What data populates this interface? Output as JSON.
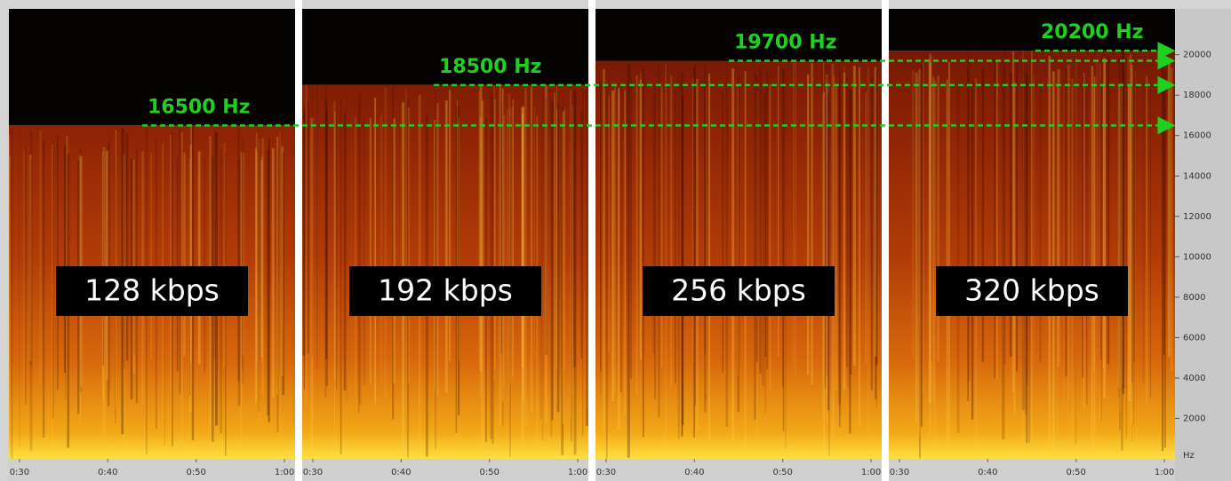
{
  "chart_data": {
    "type": "spectrogram",
    "categories": [
      "128 kbps",
      "192 kbps",
      "256 kbps",
      "320 kbps"
    ],
    "values": [
      16500,
      18500,
      19700,
      20200
    ],
    "value_labels": [
      "16500 Hz",
      "18500 Hz",
      "19700 Hz",
      "20200 Hz"
    ],
    "ylim": [
      0,
      22050
    ],
    "yticks": [
      2000,
      4000,
      6000,
      8000,
      10000,
      12000,
      14000,
      16000,
      18000,
      20000
    ],
    "y_unit": "Hz",
    "xlim": [
      28.8,
      61.2
    ],
    "xticks": [
      {
        "value": 30,
        "label": "0:30"
      },
      {
        "value": 40,
        "label": "0:40"
      },
      {
        "value": 50,
        "label": "0:50"
      },
      {
        "value": 60,
        "label": "1:00"
      }
    ],
    "color": "#1fd11f"
  }
}
